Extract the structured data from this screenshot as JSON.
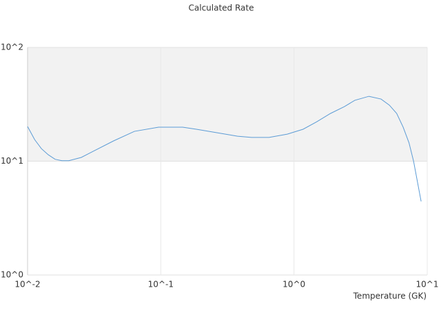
{
  "chart_data": {
    "type": "line",
    "title": "Calculated Rate",
    "x_label": "Temperature (GK)",
    "x": [
      0.01,
      0.0113,
      0.0127,
      0.0143,
      0.0161,
      0.0181,
      0.0204,
      0.0253,
      0.031,
      0.0443,
      0.0634,
      0.0962,
      0.146,
      0.185,
      0.28,
      0.377,
      0.48,
      0.65,
      0.89,
      1.17,
      1.48,
      1.88,
      2.39,
      2.86,
      3.65,
      4.5,
      5.2,
      5.9,
      6.6,
      7.3,
      7.9,
      9.0
    ],
    "series": [
      {
        "color": "#5b9bd5",
        "values": [
          20.2,
          15.5,
          12.9,
          11.4,
          10.4,
          10.1,
          10.1,
          10.8,
          12.2,
          15.1,
          18.3,
          19.9,
          19.9,
          19.1,
          17.6,
          16.6,
          16.2,
          16.2,
          17.3,
          19.1,
          22.2,
          26.3,
          30.2,
          34.3,
          37.2,
          35.2,
          31.1,
          26.3,
          19.9,
          14.5,
          10.0,
          4.43
        ]
      }
    ],
    "xlim": [
      0.01,
      10
    ],
    "ylim": [
      1,
      100
    ],
    "xlog": true,
    "ylog": true,
    "xticks": [
      {
        "value": 0.01,
        "label": "10^-2"
      },
      {
        "value": 0.1,
        "label": "10^-1"
      },
      {
        "value": 1,
        "label": "10^0"
      },
      {
        "value": 10,
        "label": "10^1"
      }
    ],
    "yticks": [
      {
        "value": 1,
        "label": "10^0"
      },
      {
        "value": 10,
        "label": "10^1"
      },
      {
        "value": 100,
        "label": "10^2"
      }
    ],
    "grid": true
  }
}
